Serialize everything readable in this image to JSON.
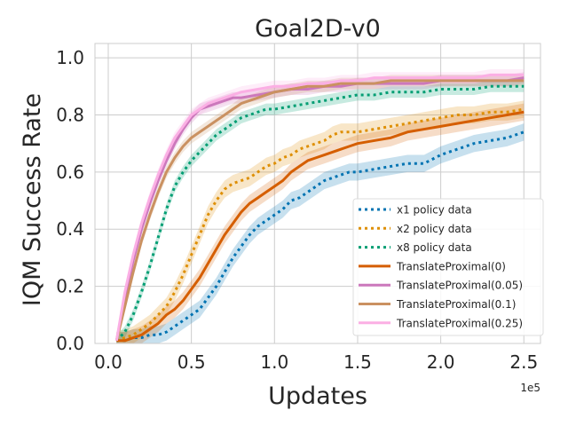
{
  "chart_data": {
    "type": "line",
    "title": "Goal2D-v0",
    "xlabel": "Updates",
    "ylabel": "IQM Success Rate",
    "x_offset_label": "1e5",
    "xlim": [
      -0.08,
      2.6
    ],
    "ylim": [
      0.0,
      1.05
    ],
    "xticks": [
      0.0,
      0.5,
      1.0,
      1.5,
      2.0,
      2.5
    ],
    "xtick_labels": [
      "0.0",
      "0.5",
      "1.0",
      "1.5",
      "2.0",
      "2.5"
    ],
    "yticks": [
      0.0,
      0.2,
      0.4,
      0.6,
      0.8,
      1.0
    ],
    "ytick_labels": [
      "0.0",
      "0.2",
      "0.4",
      "0.6",
      "0.8",
      "1.0"
    ],
    "grid": true,
    "legend_position": "lower-right",
    "series": [
      {
        "name": "x1 policy data",
        "color": "#0173b2",
        "style": "dotted",
        "band": 0.03,
        "x": [
          0.05,
          0.1,
          0.15,
          0.2,
          0.25,
          0.3,
          0.35,
          0.4,
          0.45,
          0.5,
          0.55,
          0.6,
          0.65,
          0.7,
          0.75,
          0.8,
          0.85,
          0.9,
          0.95,
          1.0,
          1.05,
          1.1,
          1.15,
          1.2,
          1.25,
          1.3,
          1.35,
          1.4,
          1.45,
          1.5,
          1.6,
          1.7,
          1.8,
          1.9,
          2.0,
          2.1,
          2.2,
          2.3,
          2.4,
          2.5
        ],
        "y": [
          0.01,
          0.01,
          0.02,
          0.02,
          0.03,
          0.03,
          0.04,
          0.06,
          0.08,
          0.1,
          0.12,
          0.16,
          0.2,
          0.25,
          0.3,
          0.34,
          0.38,
          0.41,
          0.43,
          0.45,
          0.47,
          0.5,
          0.51,
          0.53,
          0.55,
          0.57,
          0.58,
          0.59,
          0.6,
          0.6,
          0.61,
          0.62,
          0.63,
          0.63,
          0.66,
          0.68,
          0.7,
          0.71,
          0.72,
          0.74
        ]
      },
      {
        "name": "x2 policy data",
        "color": "#de8f05",
        "style": "dotted",
        "band": 0.03,
        "x": [
          0.05,
          0.1,
          0.15,
          0.2,
          0.25,
          0.3,
          0.35,
          0.4,
          0.45,
          0.5,
          0.55,
          0.6,
          0.65,
          0.7,
          0.75,
          0.8,
          0.85,
          0.9,
          0.95,
          1.0,
          1.05,
          1.1,
          1.15,
          1.2,
          1.25,
          1.3,
          1.35,
          1.4,
          1.45,
          1.5,
          1.6,
          1.7,
          1.8,
          1.9,
          2.0,
          2.1,
          2.2,
          2.3,
          2.4,
          2.5
        ],
        "y": [
          0.01,
          0.02,
          0.03,
          0.05,
          0.07,
          0.1,
          0.13,
          0.18,
          0.24,
          0.31,
          0.38,
          0.45,
          0.5,
          0.54,
          0.56,
          0.57,
          0.58,
          0.6,
          0.62,
          0.63,
          0.65,
          0.66,
          0.68,
          0.69,
          0.7,
          0.71,
          0.73,
          0.74,
          0.74,
          0.74,
          0.75,
          0.76,
          0.77,
          0.78,
          0.79,
          0.8,
          0.8,
          0.81,
          0.81,
          0.82
        ]
      },
      {
        "name": "x8 policy data",
        "color": "#029e73",
        "style": "dotted",
        "band": 0.02,
        "x": [
          0.05,
          0.1,
          0.15,
          0.2,
          0.25,
          0.3,
          0.35,
          0.4,
          0.45,
          0.5,
          0.55,
          0.6,
          0.65,
          0.7,
          0.75,
          0.8,
          0.85,
          0.9,
          0.95,
          1.0,
          1.1,
          1.2,
          1.3,
          1.4,
          1.5,
          1.6,
          1.7,
          1.8,
          1.9,
          2.0,
          2.1,
          2.2,
          2.3,
          2.4,
          2.5
        ],
        "y": [
          0.01,
          0.04,
          0.1,
          0.18,
          0.27,
          0.37,
          0.47,
          0.55,
          0.6,
          0.64,
          0.67,
          0.7,
          0.73,
          0.75,
          0.77,
          0.79,
          0.8,
          0.81,
          0.82,
          0.82,
          0.83,
          0.84,
          0.85,
          0.86,
          0.87,
          0.87,
          0.88,
          0.88,
          0.88,
          0.89,
          0.89,
          0.89,
          0.9,
          0.9,
          0.9
        ]
      },
      {
        "name": "TranslateProximal(0)",
        "color": "#d55e00",
        "style": "solid",
        "band": 0.03,
        "x": [
          0.05,
          0.1,
          0.15,
          0.2,
          0.25,
          0.3,
          0.35,
          0.4,
          0.45,
          0.5,
          0.55,
          0.6,
          0.65,
          0.7,
          0.75,
          0.8,
          0.85,
          0.9,
          0.95,
          1.0,
          1.05,
          1.1,
          1.15,
          1.2,
          1.25,
          1.3,
          1.35,
          1.4,
          1.45,
          1.5,
          1.6,
          1.7,
          1.8,
          1.9,
          2.0,
          2.1,
          2.2,
          2.3,
          2.4,
          2.5
        ],
        "y": [
          0.01,
          0.01,
          0.02,
          0.03,
          0.05,
          0.07,
          0.1,
          0.12,
          0.15,
          0.19,
          0.23,
          0.28,
          0.33,
          0.38,
          0.42,
          0.46,
          0.49,
          0.51,
          0.53,
          0.55,
          0.57,
          0.6,
          0.62,
          0.64,
          0.65,
          0.66,
          0.67,
          0.68,
          0.69,
          0.7,
          0.71,
          0.72,
          0.74,
          0.75,
          0.76,
          0.77,
          0.78,
          0.79,
          0.8,
          0.81
        ]
      },
      {
        "name": "TranslateProximal(0.05)",
        "color": "#cc78bc",
        "style": "solid",
        "band": 0.02,
        "x": [
          0.05,
          0.1,
          0.15,
          0.2,
          0.25,
          0.3,
          0.35,
          0.4,
          0.45,
          0.5,
          0.55,
          0.6,
          0.65,
          0.7,
          0.75,
          0.8,
          0.9,
          1.0,
          1.1,
          1.2,
          1.3,
          1.4,
          1.5,
          1.6,
          1.7,
          1.8,
          1.9,
          2.0,
          2.1,
          2.2,
          2.3,
          2.4,
          2.5
        ],
        "y": [
          0.01,
          0.16,
          0.29,
          0.4,
          0.49,
          0.57,
          0.64,
          0.7,
          0.75,
          0.79,
          0.82,
          0.83,
          0.84,
          0.85,
          0.86,
          0.86,
          0.87,
          0.88,
          0.89,
          0.89,
          0.9,
          0.9,
          0.91,
          0.91,
          0.91,
          0.91,
          0.91,
          0.92,
          0.92,
          0.92,
          0.92,
          0.92,
          0.93
        ]
      },
      {
        "name": "TranslateProximal(0.1)",
        "color": "#ca9161",
        "style": "solid",
        "band": 0.02,
        "x": [
          0.05,
          0.1,
          0.15,
          0.2,
          0.25,
          0.3,
          0.35,
          0.4,
          0.45,
          0.5,
          0.55,
          0.6,
          0.65,
          0.7,
          0.75,
          0.8,
          0.9,
          1.0,
          1.1,
          1.2,
          1.3,
          1.4,
          1.5,
          1.6,
          1.7,
          1.8,
          1.9,
          2.0,
          2.1,
          2.2,
          2.3,
          2.4,
          2.5
        ],
        "y": [
          0.01,
          0.13,
          0.25,
          0.36,
          0.45,
          0.53,
          0.6,
          0.65,
          0.69,
          0.72,
          0.74,
          0.76,
          0.78,
          0.8,
          0.82,
          0.84,
          0.86,
          0.88,
          0.89,
          0.9,
          0.9,
          0.91,
          0.91,
          0.91,
          0.92,
          0.92,
          0.92,
          0.92,
          0.92,
          0.92,
          0.92,
          0.92,
          0.92
        ]
      },
      {
        "name": "TranslateProximal(0.25)",
        "color": "#fbafe4",
        "style": "solid",
        "band": 0.02,
        "x": [
          0.05,
          0.1,
          0.15,
          0.2,
          0.25,
          0.3,
          0.35,
          0.4,
          0.45,
          0.5,
          0.55,
          0.6,
          0.65,
          0.7,
          0.75,
          0.8,
          0.9,
          1.0,
          1.1,
          1.2,
          1.3,
          1.4,
          1.5,
          1.6,
          1.7,
          1.8,
          1.9,
          2.0,
          2.1,
          2.2,
          2.3,
          2.4,
          2.5
        ],
        "y": [
          0.01,
          0.18,
          0.31,
          0.42,
          0.51,
          0.59,
          0.66,
          0.72,
          0.76,
          0.8,
          0.82,
          0.84,
          0.85,
          0.86,
          0.87,
          0.88,
          0.89,
          0.9,
          0.9,
          0.91,
          0.91,
          0.92,
          0.92,
          0.93,
          0.93,
          0.93,
          0.93,
          0.93,
          0.93,
          0.93,
          0.94,
          0.94,
          0.94
        ]
      }
    ]
  }
}
